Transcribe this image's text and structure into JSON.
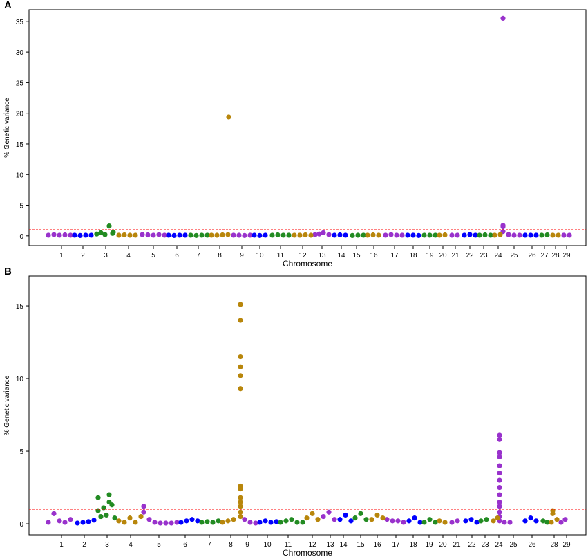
{
  "chart_data": [
    {
      "type": "scatter",
      "panel_label": "A",
      "xlabel": "Chromosome",
      "ylabel": "% Genetic variance",
      "xlim": [
        0,
        806
      ],
      "ylim": [
        -1.6,
        36.9
      ],
      "yticks": [
        0,
        5,
        10,
        15,
        20,
        25,
        30,
        35
      ],
      "xticks": [
        {
          "value": 47,
          "label": "1"
        },
        {
          "value": 78,
          "label": "2"
        },
        {
          "value": 111,
          "label": "3"
        },
        {
          "value": 144,
          "label": "4"
        },
        {
          "value": 180,
          "label": "5"
        },
        {
          "value": 214,
          "label": "6"
        },
        {
          "value": 245,
          "label": "7"
        },
        {
          "value": 276,
          "label": "8"
        },
        {
          "value": 308,
          "label": "9"
        },
        {
          "value": 334,
          "label": "10"
        },
        {
          "value": 364,
          "label": "11"
        },
        {
          "value": 396,
          "label": "12"
        },
        {
          "value": 424,
          "label": "13"
        },
        {
          "value": 452,
          "label": "14"
        },
        {
          "value": 474,
          "label": "15"
        },
        {
          "value": 499,
          "label": "16"
        },
        {
          "value": 529,
          "label": "17"
        },
        {
          "value": 556,
          "label": "18"
        },
        {
          "value": 580,
          "label": "19"
        },
        {
          "value": 599,
          "label": "20"
        },
        {
          "value": 617,
          "label": "21"
        },
        {
          "value": 638,
          "label": "22"
        },
        {
          "value": 658,
          "label": "23"
        },
        {
          "value": 679,
          "label": "24"
        },
        {
          "value": 702,
          "label": "25"
        },
        {
          "value": 728,
          "label": "26"
        },
        {
          "value": 746,
          "label": "27"
        },
        {
          "value": 762,
          "label": "28"
        },
        {
          "value": 778,
          "label": "29"
        }
      ],
      "threshold": 1,
      "threshold_color": "#ff0000",
      "series": [
        {
          "color": "#9932cc",
          "x": [
            28,
            36,
            44,
            52,
            60,
            164,
            172,
            180,
            188,
            196,
            296,
            304,
            312,
            320,
            414,
            420,
            426,
            434,
            516,
            524,
            532,
            540,
            612,
            620,
            686,
            686,
            686,
            686,
            694,
            702,
            710,
            774,
            782
          ],
          "values": [
            0.1,
            0.2,
            0.1,
            0.15,
            0.1,
            0.2,
            0.15,
            0.1,
            0.2,
            0.1,
            0.1,
            0.1,
            0.05,
            0.1,
            0.2,
            0.3,
            0.5,
            0.2,
            0.1,
            0.2,
            0.1,
            0.1,
            0.1,
            0.1,
            35.5,
            1.7,
            1.5,
            0.7,
            0.2,
            0.1,
            0.1,
            0.1,
            0.1
          ]
        },
        {
          "color": "#0000ff",
          "x": [
            66,
            74,
            82,
            90,
            202,
            210,
            218,
            226,
            326,
            334,
            342,
            442,
            450,
            458,
            548,
            556,
            564,
            630,
            638,
            646,
            718,
            726,
            734
          ],
          "values": [
            0.1,
            0.05,
            0.1,
            0.1,
            0.1,
            0.05,
            0.1,
            0.1,
            0.1,
            0.05,
            0.1,
            0.1,
            0.15,
            0.1,
            0.1,
            0.1,
            0.05,
            0.1,
            0.2,
            0.1,
            0.1,
            0.1,
            0.1
          ]
        },
        {
          "color": "#228b22",
          "x": [
            98,
            104,
            110,
            116,
            121,
            122,
            234,
            242,
            250,
            258,
            352,
            360,
            368,
            376,
            468,
            476,
            484,
            572,
            580,
            588,
            652,
            660,
            668,
            742,
            750
          ],
          "values": [
            0.3,
            0.5,
            0.2,
            1.6,
            0.4,
            0.6,
            0.1,
            0.05,
            0.1,
            0.1,
            0.1,
            0.15,
            0.1,
            0.1,
            0.05,
            0.1,
            0.1,
            0.1,
            0.1,
            0.1,
            0.1,
            0.15,
            0.1,
            0.1,
            0.15
          ]
        },
        {
          "color": "#b8860b",
          "x": [
            130,
            138,
            146,
            154,
            264,
            272,
            280,
            288,
            289,
            384,
            392,
            400,
            408,
            490,
            498,
            506,
            594,
            602,
            674,
            682,
            758,
            766
          ],
          "values": [
            0.1,
            0.15,
            0.1,
            0.1,
            0.1,
            0.1,
            0.15,
            0.2,
            19.4,
            0.1,
            0.1,
            0.15,
            0.1,
            0.1,
            0.15,
            0.1,
            0.1,
            0.15,
            0.1,
            0.2,
            0.1,
            0.1
          ]
        }
      ]
    },
    {
      "type": "scatter",
      "panel_label": "B",
      "xlabel": "Chromosome",
      "ylabel": "% Genetic variance",
      "xlim": [
        0,
        806
      ],
      "ylim": [
        -0.76,
        17.05
      ],
      "yticks": [
        0,
        5,
        10,
        15
      ],
      "xticks": [
        {
          "value": 47,
          "label": "1"
        },
        {
          "value": 80,
          "label": "2"
        },
        {
          "value": 113,
          "label": "3"
        },
        {
          "value": 147,
          "label": "4"
        },
        {
          "value": 188,
          "label": "5"
        },
        {
          "value": 226,
          "label": "6"
        },
        {
          "value": 261,
          "label": "7"
        },
        {
          "value": 292,
          "label": "8"
        },
        {
          "value": 316,
          "label": "9"
        },
        {
          "value": 345,
          "label": "10"
        },
        {
          "value": 375,
          "label": "11"
        },
        {
          "value": 410,
          "label": "12"
        },
        {
          "value": 436,
          "label": "13"
        },
        {
          "value": 455,
          "label": "14"
        },
        {
          "value": 480,
          "label": "15"
        },
        {
          "value": 504,
          "label": "16"
        },
        {
          "value": 531,
          "label": "17"
        },
        {
          "value": 556,
          "label": "18"
        },
        {
          "value": 579,
          "label": "19"
        },
        {
          "value": 599,
          "label": "20"
        },
        {
          "value": 619,
          "label": "21"
        },
        {
          "value": 641,
          "label": "22"
        },
        {
          "value": 660,
          "label": "23"
        },
        {
          "value": 680,
          "label": "24"
        },
        {
          "value": 701,
          "label": "25"
        },
        {
          "value": 728,
          "label": "26"
        },
        {
          "value": 760,
          "label": "28"
        },
        {
          "value": 778,
          "label": "29"
        }
      ],
      "threshold": 1,
      "threshold_color": "#ff0000",
      "series": [
        {
          "color": "#9932cc",
          "x": [
            28,
            36,
            44,
            52,
            60,
            166,
            166,
            174,
            182,
            190,
            198,
            206,
            214,
            312,
            320,
            328,
            426,
            434,
            442,
            518,
            526,
            534,
            542,
            612,
            620,
            681,
            681,
            681,
            681,
            681,
            681,
            681,
            681,
            681,
            681,
            681,
            681,
            681,
            681,
            688,
            696,
            770,
            776
          ],
          "values": [
            0.1,
            0.7,
            0.2,
            0.1,
            0.3,
            1.2,
            0.8,
            0.3,
            0.1,
            0.05,
            0.05,
            0.05,
            0.1,
            0.3,
            0.1,
            0.05,
            0.5,
            0.8,
            0.3,
            0.3,
            0.2,
            0.2,
            0.1,
            0.1,
            0.2,
            6.1,
            5.8,
            4.9,
            4.6,
            4.0,
            3.5,
            3.0,
            2.5,
            2.0,
            1.5,
            1.2,
            0.8,
            0.5,
            0.2,
            0.1,
            0.1,
            0.1,
            0.3
          ]
        },
        {
          "color": "#0000ff",
          "x": [
            70,
            78,
            86,
            94,
            220,
            228,
            236,
            244,
            334,
            342,
            350,
            358,
            450,
            458,
            466,
            550,
            558,
            566,
            632,
            640,
            648,
            718,
            726,
            734
          ],
          "values": [
            0.05,
            0.1,
            0.15,
            0.25,
            0.1,
            0.2,
            0.3,
            0.2,
            0.1,
            0.2,
            0.1,
            0.15,
            0.3,
            0.6,
            0.2,
            0.2,
            0.4,
            0.1,
            0.2,
            0.3,
            0.1,
            0.2,
            0.4,
            0.2
          ]
        },
        {
          "color": "#228b22",
          "x": [
            100,
            100,
            104,
            108,
            112,
            116,
            116,
            120,
            124,
            250,
            258,
            266,
            274,
            364,
            372,
            380,
            388,
            396,
            472,
            480,
            488,
            572,
            580,
            588,
            654,
            662,
            744,
            750
          ],
          "values": [
            1.8,
            0.9,
            0.5,
            1.1,
            0.6,
            2.0,
            1.5,
            1.3,
            0.4,
            0.1,
            0.15,
            0.1,
            0.2,
            0.1,
            0.2,
            0.3,
            0.1,
            0.1,
            0.4,
            0.7,
            0.3,
            0.1,
            0.3,
            0.1,
            0.2,
            0.3,
            0.2,
            0.1
          ]
        },
        {
          "color": "#b8860b",
          "x": [
            130,
            138,
            146,
            154,
            162,
            280,
            288,
            296,
            306,
            306,
            306,
            306,
            306,
            306,
            306,
            306,
            306,
            306,
            306,
            306,
            306,
            402,
            410,
            418,
            496,
            504,
            512,
            594,
            602,
            672,
            678,
            756,
            758,
            758,
            764
          ],
          "values": [
            0.2,
            0.1,
            0.4,
            0.1,
            0.5,
            0.1,
            0.2,
            0.3,
            15.1,
            14.0,
            11.5,
            10.8,
            10.2,
            9.3,
            2.6,
            2.4,
            1.8,
            1.5,
            1.2,
            0.8,
            0.5,
            0.4,
            0.7,
            0.3,
            0.3,
            0.6,
            0.4,
            0.2,
            0.1,
            0.2,
            0.4,
            0.1,
            0.9,
            0.7,
            0.3
          ]
        }
      ]
    }
  ]
}
